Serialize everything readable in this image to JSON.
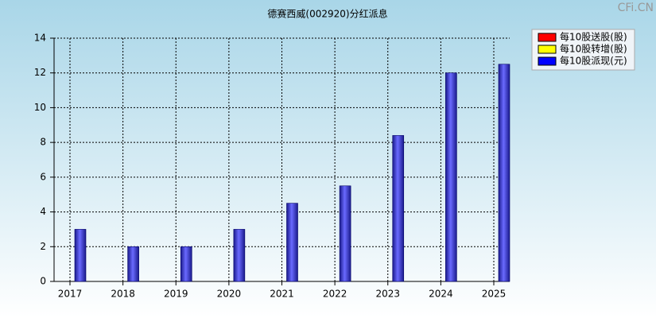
{
  "chart_data": {
    "type": "bar",
    "title": "德赛西威(002920)分红派息",
    "watermark": "CFi.CN",
    "categories": [
      "2017",
      "2018",
      "2019",
      "2020",
      "2021",
      "2022",
      "2023",
      "2024",
      "2025"
    ],
    "series": [
      {
        "name": "每10股送股(股)",
        "color": "#ff0000",
        "values": [
          null,
          null,
          null,
          null,
          null,
          null,
          null,
          null,
          null
        ]
      },
      {
        "name": "每10股转增(股)",
        "color": "#ffff00",
        "values": [
          null,
          null,
          null,
          null,
          null,
          null,
          null,
          null,
          null
        ]
      },
      {
        "name": "每10股派现(元)",
        "color": "#0000ff",
        "values": [
          3,
          2,
          2,
          3,
          4.5,
          5.5,
          8.4,
          12,
          12.5
        ]
      }
    ],
    "ylim": [
      0,
      14
    ],
    "yticks": [
      0,
      2,
      4,
      6,
      8,
      10,
      12,
      14
    ],
    "grid": true,
    "legend": "top-right"
  }
}
